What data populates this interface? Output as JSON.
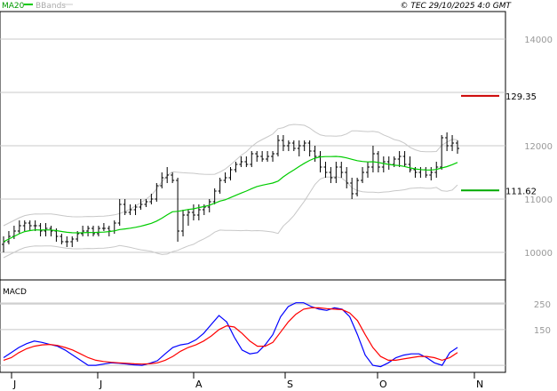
{
  "header": {
    "legend_ma": "MA20",
    "legend_bb": "BBands",
    "copyright": "© TEC 29/10/2025 4:0 GMT"
  },
  "colors": {
    "ma": "#00cc00",
    "bbands": "#c8c8c8",
    "price": "#000000",
    "macd": "#0000ff",
    "signal": "#ff0000",
    "resistance": "#cc0000",
    "support": "#00aa00",
    "grid": "#c8c8c8",
    "axis_text": "#999999"
  },
  "chart_data": [
    {
      "type": "candlestick",
      "title": "",
      "ylim": [
        95,
        145
      ],
      "y_ticks": [
        "14000",
        "12000",
        "11000",
        "10000"
      ],
      "x_ticks": [
        "J",
        "J",
        "A",
        "S",
        "O",
        "N"
      ],
      "levels": [
        {
          "label": "129.35",
          "value": 129.35,
          "kind": "resistance"
        },
        {
          "label": "111.62",
          "value": 111.62,
          "kind": "support"
        }
      ],
      "ohlc_approx": [
        [
          101.5,
          103,
          100,
          102
        ],
        [
          102,
          104,
          101.5,
          103
        ],
        [
          103,
          105,
          102.5,
          104
        ],
        [
          104,
          106,
          103.5,
          105
        ],
        [
          105,
          106,
          104,
          105.5
        ],
        [
          105.5,
          106,
          104,
          105
        ],
        [
          105,
          106,
          104,
          105
        ],
        [
          105,
          105.5,
          103,
          104
        ],
        [
          104,
          105.5,
          103,
          104.5
        ],
        [
          104.5,
          105,
          103,
          104
        ],
        [
          104,
          104.5,
          102,
          103
        ],
        [
          103,
          103.5,
          101.5,
          102
        ],
        [
          102,
          103,
          101,
          102
        ],
        [
          102,
          103,
          101,
          102.5
        ],
        [
          102.5,
          104,
          102,
          103.5
        ],
        [
          103.5,
          105,
          103,
          104
        ],
        [
          104,
          105,
          103,
          104.5
        ],
        [
          104.5,
          105,
          103,
          103.5
        ],
        [
          103.5,
          105,
          103,
          104.5
        ],
        [
          104.5,
          105.5,
          104,
          104.5
        ],
        [
          104.5,
          105,
          103,
          104
        ],
        [
          104,
          106,
          103.5,
          105.5
        ],
        [
          105.5,
          110,
          105,
          109
        ],
        [
          109,
          110,
          107,
          107.5
        ],
        [
          107.5,
          109,
          107,
          108
        ],
        [
          108,
          109,
          107,
          108.5
        ],
        [
          108.5,
          110,
          108,
          109
        ],
        [
          109,
          110,
          108.5,
          109.5
        ],
        [
          109.5,
          111,
          109,
          110
        ],
        [
          110,
          113,
          109.5,
          112.5
        ],
        [
          112.5,
          115,
          112,
          114
        ],
        [
          114,
          116,
          113,
          114.5
        ],
        [
          114.5,
          115,
          113,
          113.5
        ],
        [
          113.5,
          114,
          102,
          104
        ],
        [
          104,
          108,
          103,
          107
        ],
        [
          107,
          108,
          105,
          107.5
        ],
        [
          107.5,
          109,
          106,
          107
        ],
        [
          107,
          109,
          106,
          108
        ],
        [
          108,
          109,
          107,
          108.5
        ],
        [
          108.5,
          110,
          107.5,
          109.5
        ],
        [
          109.5,
          112,
          109,
          111.5
        ],
        [
          111.5,
          114,
          111,
          113.5
        ],
        [
          113.5,
          115,
          113,
          114
        ],
        [
          114,
          116,
          113.5,
          115.5
        ],
        [
          115.5,
          117,
          115,
          116.5
        ],
        [
          116.5,
          118,
          116,
          117
        ],
        [
          117,
          118,
          116,
          116.5
        ],
        [
          116.5,
          119,
          116,
          118.5
        ],
        [
          118.5,
          119,
          117,
          118
        ],
        [
          118,
          119,
          117,
          117.5
        ],
        [
          117.5,
          119,
          117,
          118
        ],
        [
          118,
          119,
          117,
          118.5
        ],
        [
          118.5,
          122,
          118,
          121
        ],
        [
          121,
          122,
          119,
          120
        ],
        [
          120,
          121,
          119,
          120.5
        ],
        [
          120.5,
          121,
          119,
          119.5
        ],
        [
          119.5,
          121,
          118,
          120
        ],
        [
          120,
          121,
          119,
          120.5
        ],
        [
          120.5,
          121,
          118,
          119
        ],
        [
          119,
          120,
          117,
          118
        ],
        [
          118,
          119,
          115,
          116
        ],
        [
          116,
          117,
          114,
          115
        ],
        [
          115,
          116,
          113,
          114
        ],
        [
          114,
          117,
          113,
          116
        ],
        [
          116,
          117,
          114,
          115
        ],
        [
          115,
          116,
          112,
          113
        ],
        [
          113,
          114,
          110,
          111
        ],
        [
          111,
          114,
          110.5,
          113.5
        ],
        [
          113.5,
          116,
          113,
          115
        ],
        [
          115,
          117,
          114,
          116
        ],
        [
          116,
          120,
          115,
          118.5
        ],
        [
          118.5,
          119,
          115,
          116
        ],
        [
          116,
          118,
          115,
          117
        ],
        [
          117,
          118,
          115.5,
          116.5
        ],
        [
          116.5,
          118,
          116,
          117.5
        ],
        [
          117.5,
          119,
          116,
          118
        ],
        [
          118,
          119,
          116,
          116.5
        ],
        [
          116.5,
          118,
          115,
          115.5
        ],
        [
          115.5,
          116,
          114,
          115
        ],
        [
          115,
          116,
          114,
          115.5
        ],
        [
          115.5,
          116,
          114,
          114.5
        ],
        [
          114.5,
          116,
          113.5,
          115
        ],
        [
          115,
          117,
          114,
          116
        ],
        [
          116,
          122,
          115.5,
          121.5
        ],
        [
          121.5,
          122.5,
          119,
          120
        ],
        [
          120,
          122,
          119,
          120.5
        ],
        [
          120.5,
          121,
          118.5,
          119.5
        ]
      ]
    },
    {
      "type": "line",
      "title": "MACD",
      "ylim": [
        0,
        320
      ],
      "y_ticks": [
        "250",
        "150"
      ],
      "series": [
        {
          "name": "",
          "role": "macd",
          "values": [
            40,
            60,
            80,
            95,
            105,
            100,
            92,
            85,
            70,
            50,
            30,
            10,
            10,
            15,
            20,
            18,
            15,
            12,
            10,
            18,
            28,
            55,
            80,
            90,
            95,
            110,
            135,
            170,
            205,
            180,
            120,
            70,
            55,
            60,
            90,
            130,
            200,
            240,
            255,
            255,
            240,
            230,
            225,
            235,
            230,
            200,
            130,
            50,
            10,
            5,
            20,
            40,
            50,
            55,
            55,
            40,
            20,
            10,
            60,
            80
          ]
        },
        {
          "name": "",
          "role": "signal",
          "values": [
            30,
            40,
            60,
            75,
            85,
            90,
            92,
            88,
            80,
            70,
            55,
            40,
            30,
            25,
            22,
            20,
            18,
            16,
            15,
            16,
            20,
            30,
            45,
            65,
            80,
            90,
            105,
            125,
            150,
            165,
            160,
            135,
            105,
            85,
            85,
            100,
            140,
            180,
            210,
            230,
            235,
            235,
            232,
            230,
            228,
            215,
            185,
            130,
            80,
            45,
            30,
            30,
            35,
            40,
            45,
            45,
            40,
            30,
            40,
            60
          ]
        }
      ]
    }
  ]
}
